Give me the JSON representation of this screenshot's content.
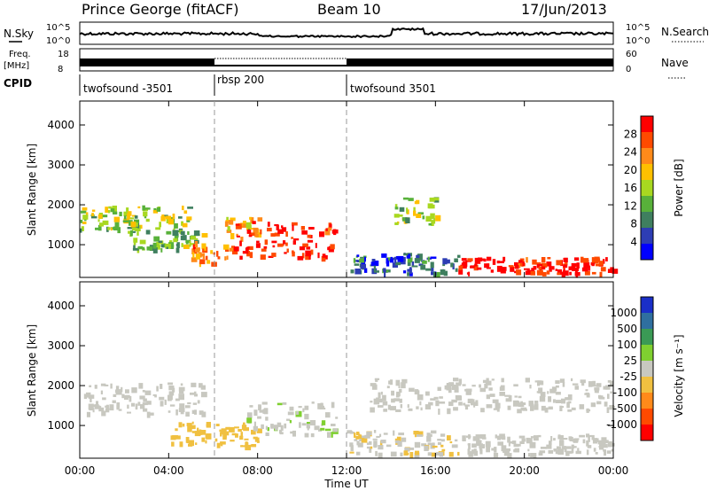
{
  "header": {
    "station": "Prince George (fitACF)",
    "beam": "Beam 10",
    "date": "17/Jun/2013"
  },
  "summary_labels": {
    "nsky": "N.Sky",
    "nsky_ticks": [
      "10^5",
      "10^0"
    ],
    "nsearch": "N.Search",
    "nsearch_ticks": [
      "10^5",
      "10^0"
    ],
    "freq_label_1": "Freq.",
    "freq_label_2": "[MHz]",
    "freq_ticks": [
      "18",
      "8"
    ],
    "nave": "Nave",
    "nave_ticks": [
      "60",
      "0"
    ],
    "cpid": "CPID",
    "cpid_segments": [
      {
        "label": "twofsound -3501",
        "start": 0,
        "end": 6
      },
      {
        "label": "rbsp 200",
        "start": 6,
        "end": 12
      },
      {
        "label": "twofsound 3501",
        "start": 12,
        "end": 24
      }
    ]
  },
  "x_axis": {
    "label": "Time UT",
    "ticks": [
      "00:00",
      "04:00",
      "08:00",
      "12:00",
      "16:00",
      "20:00",
      "00:00"
    ]
  },
  "power_panel": {
    "ylabel": "Slant Range [km]",
    "yticks": [
      "4000",
      "3000",
      "2000",
      "1000"
    ],
    "cbar_label": "Power [dB]",
    "cbar_ticks": [
      "28",
      "24",
      "20",
      "16",
      "12",
      "8",
      "4"
    ],
    "colors": [
      "#0000ff",
      "#2d3db4",
      "#3f7f5f",
      "#58b13a",
      "#a8d820",
      "#ffc000",
      "#ff8a1a",
      "#ff4a00",
      "#ff0000"
    ]
  },
  "velocity_panel": {
    "ylabel": "Slant Range [km]",
    "yticks": [
      "4000",
      "3000",
      "2000",
      "1000"
    ],
    "cbar_label": "Velocity [m s⁻¹]",
    "cbar_ticks": [
      "1000",
      "500",
      "100",
      "25",
      "-25",
      "-100",
      "-500",
      "-1000"
    ],
    "colors": [
      "#1a2fc8",
      "#2f6f9f",
      "#3a9a55",
      "#7fd030",
      "#c8c8c0",
      "#f0c040",
      "#ff8a1a",
      "#ff4a00",
      "#ff0000"
    ]
  },
  "chart_data": [
    {
      "type": "heatmap",
      "title": "Prince George (fitACF) Beam 10 17/Jun/2013",
      "xlabel": "Time UT",
      "ylabel": "Slant Range [km]",
      "xlim": [
        0,
        24
      ],
      "ylim": [
        180,
        4600
      ],
      "colorbar": {
        "label": "Power [dB]",
        "range": [
          0,
          30
        ]
      },
      "regions": [
        {
          "t": [
            0,
            5
          ],
          "range": [
            1400,
            2000
          ],
          "power": 14
        },
        {
          "t": [
            2,
            5.5
          ],
          "range": [
            900,
            1400
          ],
          "power": 12
        },
        {
          "t": [
            5,
            7
          ],
          "range": [
            550,
            1100
          ],
          "power": 22
        },
        {
          "t": [
            6.5,
            8
          ],
          "range": [
            1200,
            1800
          ],
          "power": 18
        },
        {
          "t": [
            7,
            11.5
          ],
          "range": [
            700,
            1600
          ],
          "power": 28
        },
        {
          "t": [
            12,
            17
          ],
          "range": [
            300,
            800
          ],
          "power": 6
        },
        {
          "t": [
            14,
            16
          ],
          "range": [
            1500,
            2200
          ],
          "power": 14
        },
        {
          "t": [
            17,
            24
          ],
          "range": [
            300,
            700
          ],
          "power": 28
        }
      ]
    },
    {
      "type": "heatmap",
      "title": "Prince George (fitACF) Beam 10 17/Jun/2013",
      "xlabel": "Time UT",
      "ylabel": "Slant Range [km]",
      "xlim": [
        0,
        24
      ],
      "ylim": [
        180,
        4600
      ],
      "colorbar": {
        "label": "Velocity [m s⁻¹]",
        "range": [
          -1000,
          1000
        ]
      },
      "regions": [
        {
          "t": [
            0,
            5.5
          ],
          "range": [
            1300,
            2100
          ],
          "velocity": 0
        },
        {
          "t": [
            4,
            8
          ],
          "range": [
            500,
            1100
          ],
          "velocity": -200
        },
        {
          "t": [
            7.5,
            11.5
          ],
          "range": [
            800,
            1600
          ],
          "velocity": 80
        },
        {
          "t": [
            12,
            17
          ],
          "range": [
            300,
            900
          ],
          "velocity": -100
        },
        {
          "t": [
            13,
            24
          ],
          "range": [
            1400,
            2200
          ],
          "velocity": 0
        },
        {
          "t": [
            17,
            24
          ],
          "range": [
            300,
            800
          ],
          "velocity": 0
        }
      ]
    }
  ]
}
